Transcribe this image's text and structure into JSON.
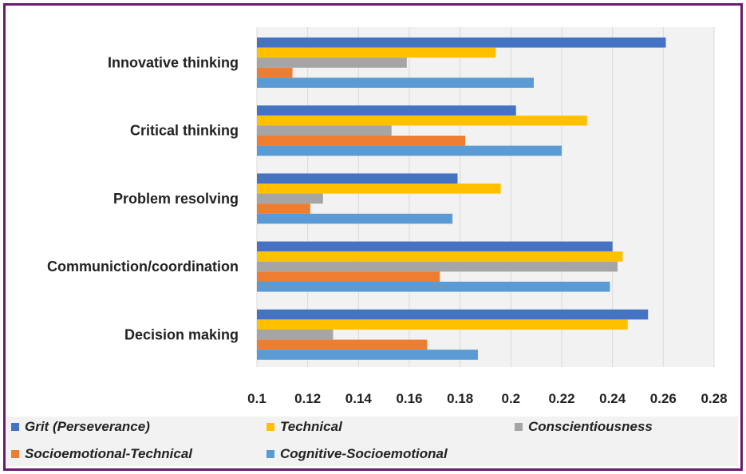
{
  "chart_data": {
    "type": "bar",
    "orientation": "horizontal",
    "title": "",
    "xlabel": "",
    "ylabel": "",
    "xlim": [
      0.1,
      0.28
    ],
    "xticks": [
      "0.1",
      "0.12",
      "0.14",
      "0.16",
      "0.18",
      "0.2",
      "0.22",
      "0.24",
      "0.26",
      "0.28"
    ],
    "xtick_values": [
      0.1,
      0.12,
      0.14,
      0.16,
      0.18,
      0.2,
      0.22,
      0.24,
      0.26,
      0.28
    ],
    "grid": true,
    "legend_position": "bottom",
    "categories": [
      "Innovative thinking",
      "Critical thinking",
      "Problem resolving",
      "Communiction/coordination",
      "Decision making"
    ],
    "series": [
      {
        "name": "Grit (Perseverance)",
        "color": "#4472c4",
        "values": [
          0.261,
          0.202,
          0.179,
          0.24,
          0.254
        ]
      },
      {
        "name": "Technical",
        "color": "#ffc000",
        "values": [
          0.194,
          0.23,
          0.196,
          0.244,
          0.246
        ]
      },
      {
        "name": "Conscientiousness",
        "color": "#a5a5a5",
        "values": [
          0.159,
          0.153,
          0.126,
          0.242,
          0.13
        ]
      },
      {
        "name": "Socioemotional-Technical",
        "color": "#ed7d31",
        "values": [
          0.114,
          0.182,
          0.121,
          0.172,
          0.167
        ]
      },
      {
        "name": "Cognitive-Socioemotional",
        "color": "#5b9bd5",
        "values": [
          0.209,
          0.22,
          0.177,
          0.239,
          0.187
        ]
      }
    ]
  }
}
